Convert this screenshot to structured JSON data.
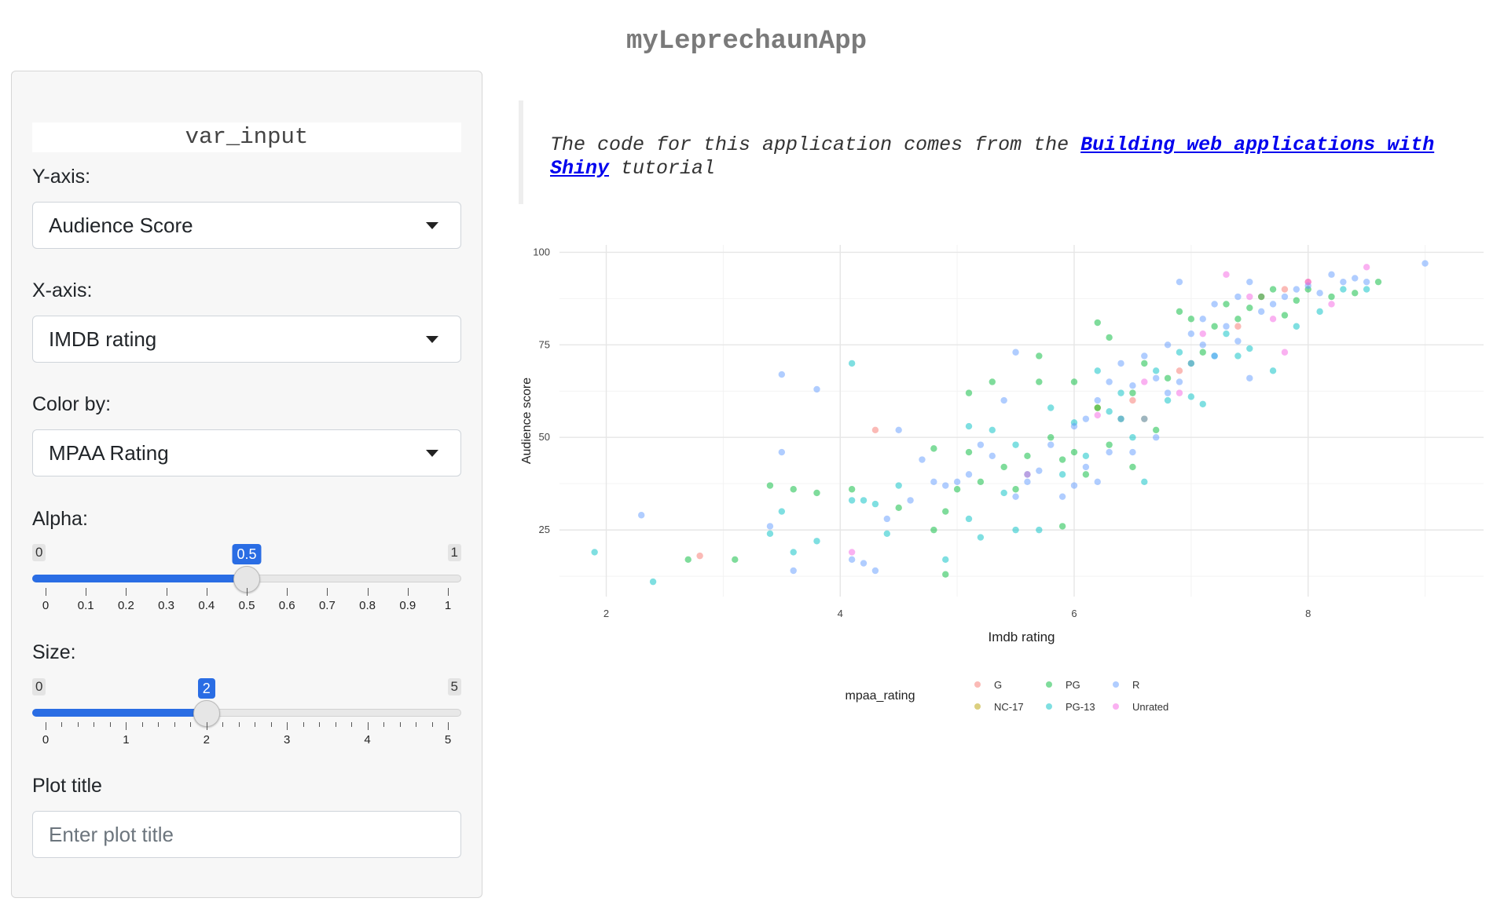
{
  "app": {
    "title": "myLeprechaunApp"
  },
  "sidebar": {
    "section_title": "var_input",
    "y_axis": {
      "label": "Y-axis:",
      "selected": "Audience Score"
    },
    "x_axis": {
      "label": "X-axis:",
      "selected": "IMDB rating"
    },
    "color_by": {
      "label": "Color by:",
      "selected": "MPAA Rating"
    },
    "alpha": {
      "label": "Alpha:",
      "min": 0,
      "max": 1,
      "value": 0.5,
      "min_label": "0",
      "max_label": "1",
      "value_label": "0.5",
      "ticks": [
        "0",
        "0.1",
        "0.2",
        "0.3",
        "0.4",
        "0.5",
        "0.6",
        "0.7",
        "0.8",
        "0.9",
        "1"
      ]
    },
    "size": {
      "label": "Size:",
      "min": 0,
      "max": 5,
      "value": 2,
      "min_label": "0",
      "max_label": "5",
      "value_label": "2",
      "ticks": [
        "0",
        "1",
        "2",
        "3",
        "4",
        "5"
      ]
    },
    "plot_title": {
      "label": "Plot title",
      "placeholder": "Enter plot title",
      "value": ""
    }
  },
  "main": {
    "note_prefix": "The code for this application comes from the ",
    "note_link": "Building web applications with Shiny",
    "note_suffix": " tutorial"
  },
  "chart_data": {
    "type": "scatter",
    "xlabel": "Imdb rating",
    "ylabel": "Audience score",
    "xlim": [
      1.6,
      9.5
    ],
    "ylim": [
      7,
      102
    ],
    "x_ticks": [
      2,
      4,
      6,
      8
    ],
    "y_ticks": [
      25,
      50,
      75,
      100
    ],
    "grid": true,
    "legend": {
      "title": "mpaa_rating",
      "position": "bottom"
    },
    "series": [
      {
        "name": "G",
        "color": "#F8766D",
        "points": [
          [
            2.8,
            18
          ],
          [
            4.3,
            52
          ],
          [
            6.5,
            60
          ],
          [
            6.9,
            68
          ],
          [
            7.4,
            80
          ],
          [
            7.6,
            88
          ],
          [
            7.8,
            90
          ],
          [
            8.0,
            92
          ]
        ]
      },
      {
        "name": "NC-17",
        "color": "#B79F00",
        "points": [
          [
            6.2,
            58
          ],
          [
            6.6,
            55
          ]
        ]
      },
      {
        "name": "PG",
        "color": "#00BA38",
        "points": [
          [
            2.7,
            17
          ],
          [
            3.1,
            17
          ],
          [
            3.4,
            37
          ],
          [
            3.6,
            36
          ],
          [
            3.8,
            35
          ],
          [
            4.1,
            36
          ],
          [
            4.5,
            31
          ],
          [
            4.8,
            25
          ],
          [
            4.8,
            47
          ],
          [
            4.9,
            30
          ],
          [
            4.9,
            13
          ],
          [
            5.0,
            36
          ],
          [
            5.1,
            62
          ],
          [
            5.1,
            46
          ],
          [
            5.2,
            38
          ],
          [
            5.3,
            65
          ],
          [
            5.4,
            42
          ],
          [
            5.5,
            36
          ],
          [
            5.6,
            45
          ],
          [
            5.7,
            72
          ],
          [
            5.7,
            65
          ],
          [
            5.8,
            50
          ],
          [
            5.9,
            44
          ],
          [
            5.9,
            26
          ],
          [
            6.0,
            46
          ],
          [
            6.0,
            65
          ],
          [
            6.1,
            40
          ],
          [
            6.2,
            81
          ],
          [
            6.2,
            58
          ],
          [
            6.3,
            48
          ],
          [
            6.3,
            77
          ],
          [
            6.4,
            55
          ],
          [
            6.5,
            62
          ],
          [
            6.5,
            42
          ],
          [
            6.6,
            70
          ],
          [
            6.7,
            52
          ],
          [
            6.8,
            66
          ],
          [
            6.9,
            84
          ],
          [
            7.0,
            82
          ],
          [
            7.0,
            70
          ],
          [
            7.1,
            73
          ],
          [
            7.2,
            80
          ],
          [
            7.3,
            86
          ],
          [
            7.4,
            82
          ],
          [
            7.5,
            85
          ],
          [
            7.6,
            88
          ],
          [
            7.7,
            90
          ],
          [
            7.8,
            83
          ],
          [
            7.9,
            87
          ],
          [
            8.0,
            90
          ],
          [
            8.2,
            88
          ],
          [
            8.4,
            89
          ],
          [
            8.6,
            92
          ]
        ]
      },
      {
        "name": "PG-13",
        "color": "#00BFC4",
        "points": [
          [
            1.9,
            19
          ],
          [
            2.4,
            11
          ],
          [
            3.4,
            24
          ],
          [
            3.5,
            30
          ],
          [
            3.6,
            19
          ],
          [
            3.8,
            22
          ],
          [
            4.1,
            70
          ],
          [
            4.1,
            33
          ],
          [
            4.2,
            33
          ],
          [
            4.3,
            32
          ],
          [
            4.4,
            24
          ],
          [
            4.5,
            37
          ],
          [
            4.9,
            17
          ],
          [
            5.1,
            53
          ],
          [
            5.1,
            28
          ],
          [
            5.2,
            23
          ],
          [
            5.3,
            52
          ],
          [
            5.4,
            35
          ],
          [
            5.5,
            48
          ],
          [
            5.5,
            25
          ],
          [
            5.6,
            40
          ],
          [
            5.7,
            25
          ],
          [
            5.8,
            58
          ],
          [
            5.9,
            40
          ],
          [
            6.0,
            54
          ],
          [
            6.1,
            45
          ],
          [
            6.2,
            68
          ],
          [
            6.3,
            57
          ],
          [
            6.4,
            62
          ],
          [
            6.5,
            50
          ],
          [
            6.6,
            38
          ],
          [
            6.7,
            68
          ],
          [
            6.8,
            60
          ],
          [
            6.9,
            73
          ],
          [
            7.0,
            61
          ],
          [
            7.1,
            59
          ],
          [
            7.2,
            72
          ],
          [
            7.3,
            78
          ],
          [
            7.4,
            72
          ],
          [
            7.5,
            74
          ],
          [
            7.7,
            68
          ],
          [
            7.9,
            80
          ],
          [
            8.1,
            84
          ],
          [
            8.3,
            90
          ],
          [
            8.5,
            90
          ]
        ]
      },
      {
        "name": "R",
        "color": "#619CFF",
        "points": [
          [
            2.3,
            29
          ],
          [
            3.4,
            26
          ],
          [
            3.5,
            67
          ],
          [
            3.5,
            46
          ],
          [
            3.6,
            14
          ],
          [
            3.8,
            63
          ],
          [
            4.1,
            17
          ],
          [
            4.2,
            16
          ],
          [
            4.3,
            14
          ],
          [
            4.4,
            28
          ],
          [
            4.5,
            52
          ],
          [
            4.6,
            33
          ],
          [
            4.7,
            44
          ],
          [
            4.8,
            38
          ],
          [
            4.9,
            37
          ],
          [
            5.0,
            38
          ],
          [
            5.1,
            40
          ],
          [
            5.2,
            48
          ],
          [
            5.3,
            45
          ],
          [
            5.4,
            60
          ],
          [
            5.5,
            34
          ],
          [
            5.5,
            73
          ],
          [
            5.6,
            38
          ],
          [
            5.7,
            41
          ],
          [
            5.8,
            48
          ],
          [
            5.9,
            34
          ],
          [
            6.0,
            53
          ],
          [
            6.0,
            37
          ],
          [
            6.1,
            55
          ],
          [
            6.1,
            42
          ],
          [
            6.2,
            60
          ],
          [
            6.2,
            38
          ],
          [
            6.3,
            65
          ],
          [
            6.3,
            46
          ],
          [
            6.4,
            70
          ],
          [
            6.4,
            55
          ],
          [
            6.5,
            64
          ],
          [
            6.5,
            46
          ],
          [
            6.6,
            72
          ],
          [
            6.6,
            55
          ],
          [
            6.7,
            66
          ],
          [
            6.7,
            50
          ],
          [
            6.8,
            75
          ],
          [
            6.8,
            62
          ],
          [
            6.9,
            92
          ],
          [
            6.9,
            65
          ],
          [
            7.0,
            78
          ],
          [
            7.0,
            70
          ],
          [
            7.1,
            82
          ],
          [
            7.1,
            75
          ],
          [
            7.2,
            86
          ],
          [
            7.2,
            72
          ],
          [
            7.3,
            80
          ],
          [
            7.4,
            88
          ],
          [
            7.4,
            76
          ],
          [
            7.5,
            92
          ],
          [
            7.5,
            66
          ],
          [
            7.6,
            84
          ],
          [
            7.7,
            86
          ],
          [
            7.8,
            88
          ],
          [
            7.9,
            90
          ],
          [
            8.0,
            91
          ],
          [
            8.1,
            89
          ],
          [
            8.2,
            94
          ],
          [
            8.3,
            92
          ],
          [
            8.4,
            93
          ],
          [
            8.5,
            92
          ],
          [
            9.0,
            97
          ]
        ]
      },
      {
        "name": "Unrated",
        "color": "#F564E3",
        "points": [
          [
            4.1,
            19
          ],
          [
            5.6,
            40
          ],
          [
            6.2,
            56
          ],
          [
            6.6,
            65
          ],
          [
            6.9,
            62
          ],
          [
            7.1,
            78
          ],
          [
            7.3,
            94
          ],
          [
            7.5,
            88
          ],
          [
            7.7,
            82
          ],
          [
            7.8,
            73
          ],
          [
            8.0,
            92
          ],
          [
            8.2,
            86
          ],
          [
            8.5,
            96
          ]
        ]
      }
    ]
  }
}
